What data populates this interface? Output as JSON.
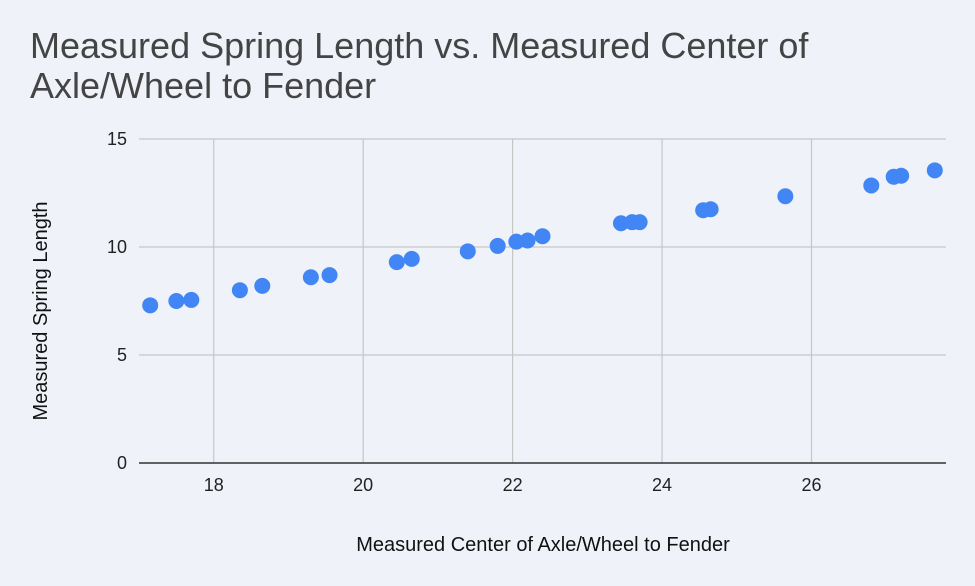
{
  "chart_data": {
    "type": "scatter",
    "title": "Measured Spring Length vs. Measured Center of Axle/Wheel to Fender",
    "xlabel": "Measured Center of Axle/Wheel to Fender",
    "ylabel": "Measured Spring Length",
    "xlim": [
      17,
      27.8
    ],
    "ylim": [
      0,
      15
    ],
    "xticks": [
      "18",
      "20",
      "22",
      "24",
      "26"
    ],
    "yticks": [
      "0",
      "5",
      "10",
      "15"
    ],
    "xtick_values": [
      18,
      20,
      22,
      24,
      26
    ],
    "ytick_values": [
      0,
      5,
      10,
      15
    ],
    "grid": true,
    "legend": "none",
    "series": [
      {
        "color": "#4285f4",
        "points": [
          {
            "x": 17.15,
            "y": 7.3
          },
          {
            "x": 17.5,
            "y": 7.5
          },
          {
            "x": 17.7,
            "y": 7.55
          },
          {
            "x": 18.35,
            "y": 8.0
          },
          {
            "x": 18.65,
            "y": 8.2
          },
          {
            "x": 19.3,
            "y": 8.6
          },
          {
            "x": 19.55,
            "y": 8.7
          },
          {
            "x": 20.45,
            "y": 9.3
          },
          {
            "x": 20.65,
            "y": 9.45
          },
          {
            "x": 21.4,
            "y": 9.8
          },
          {
            "x": 21.8,
            "y": 10.05
          },
          {
            "x": 22.05,
            "y": 10.25
          },
          {
            "x": 22.2,
            "y": 10.3
          },
          {
            "x": 22.4,
            "y": 10.5
          },
          {
            "x": 23.45,
            "y": 11.1
          },
          {
            "x": 23.6,
            "y": 11.15
          },
          {
            "x": 23.7,
            "y": 11.15
          },
          {
            "x": 24.55,
            "y": 11.7
          },
          {
            "x": 24.65,
            "y": 11.75
          },
          {
            "x": 25.65,
            "y": 12.35
          },
          {
            "x": 26.8,
            "y": 12.85
          },
          {
            "x": 27.1,
            "y": 13.25
          },
          {
            "x": 27.2,
            "y": 13.3
          },
          {
            "x": 27.65,
            "y": 13.55
          }
        ]
      }
    ]
  }
}
